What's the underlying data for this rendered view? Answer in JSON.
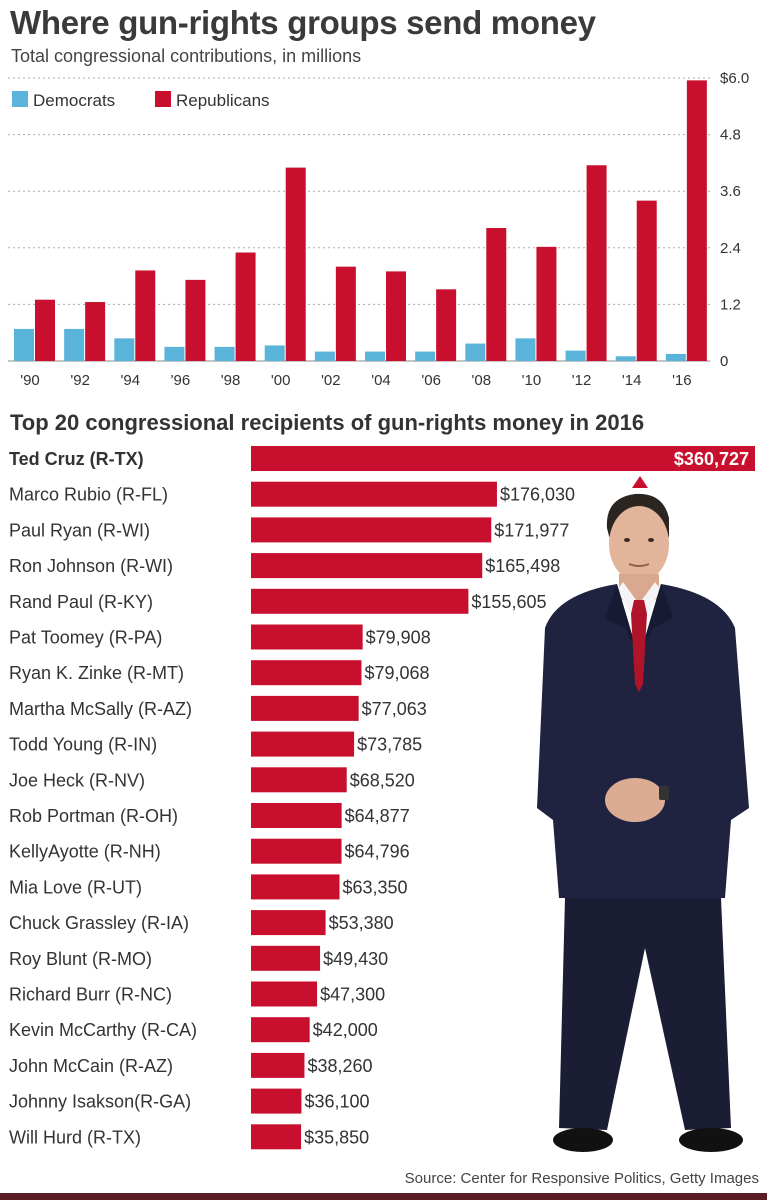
{
  "header": {
    "title": "Where gun-rights groups send money",
    "subtitle": "Total congressional contributions, in millions"
  },
  "colors": {
    "democrats": "#5ab4d9",
    "republicans": "#c8102e",
    "gridline": "#aaaaaa",
    "text": "#333333"
  },
  "chart_data": [
    {
      "type": "bar",
      "title": "Where gun-rights groups send money",
      "subtitle": "Total congressional contributions, in millions",
      "categories": [
        "'90",
        "'92",
        "'94",
        "'96",
        "'98",
        "'00",
        "'02",
        "'04",
        "'06",
        "'08",
        "'10",
        "'12",
        "'14",
        "'16"
      ],
      "series": [
        {
          "name": "Democrats",
          "color": "#5ab4d9",
          "values": [
            0.68,
            0.68,
            0.48,
            0.3,
            0.3,
            0.33,
            0.2,
            0.2,
            0.2,
            0.37,
            0.48,
            0.22,
            0.1,
            0.15
          ]
        },
        {
          "name": "Republicans",
          "color": "#c8102e",
          "values": [
            1.3,
            1.25,
            1.92,
            1.72,
            2.3,
            4.1,
            2.0,
            1.9,
            1.52,
            2.82,
            2.42,
            4.15,
            3.4,
            5.95
          ]
        }
      ],
      "yticks": [
        "$6.0",
        "4.8",
        "3.6",
        "2.4",
        "1.2",
        "0"
      ],
      "ylim": [
        0,
        6.0
      ],
      "ylabel": "",
      "xlabel": "",
      "grid": true,
      "legend": "top-left"
    },
    {
      "type": "bar",
      "orientation": "horizontal",
      "title": "Top 20 congressional recipients of gun-rights money in 2016",
      "categories": [
        "Ted Cruz (R-TX)",
        "Marco Rubio (R-FL)",
        "Paul Ryan (R-WI)",
        "Ron Johnson (R-WI)",
        "Rand Paul (R-KY)",
        "Pat Toomey (R-PA)",
        "Ryan K. Zinke (R-MT)",
        "Martha McSally (R-AZ)",
        "Todd Young (R-IN)",
        "Joe Heck (R-NV)",
        "Rob Portman (R-OH)",
        "KellyAyotte (R-NH)",
        "Mia Love (R-UT)",
        "Chuck Grassley (R-IA)",
        "Roy Blunt (R-MO)",
        "Richard Burr (R-NC)",
        "Kevin McCarthy (R-CA)",
        "John McCain (R-AZ)",
        "Johnny  Isakson(R-GA)",
        "Will Hurd (R-TX)"
      ],
      "values": [
        360727,
        176030,
        171977,
        165498,
        155605,
        79908,
        79068,
        77063,
        73785,
        68520,
        64877,
        64796,
        63350,
        53380,
        49430,
        47300,
        42000,
        38260,
        36100,
        35850
      ],
      "labels": [
        "$360,727",
        "$176,030",
        "$171,977",
        "$165,498",
        "$155,605",
        "$79,908",
        "$79,068",
        "$77,063",
        "$73,785",
        "$68,520",
        "$64,877",
        "$64,796",
        "$63,350",
        "$53,380",
        "$49,430",
        "$47,300",
        "$42,000",
        "$38,260",
        "$36,100",
        "$35,850"
      ],
      "xlim": [
        0,
        360727
      ],
      "highlight": "Ted Cruz (R-TX)"
    }
  ],
  "footer": {
    "source": "Source: Center for Responsive Politics, Getty Images"
  }
}
